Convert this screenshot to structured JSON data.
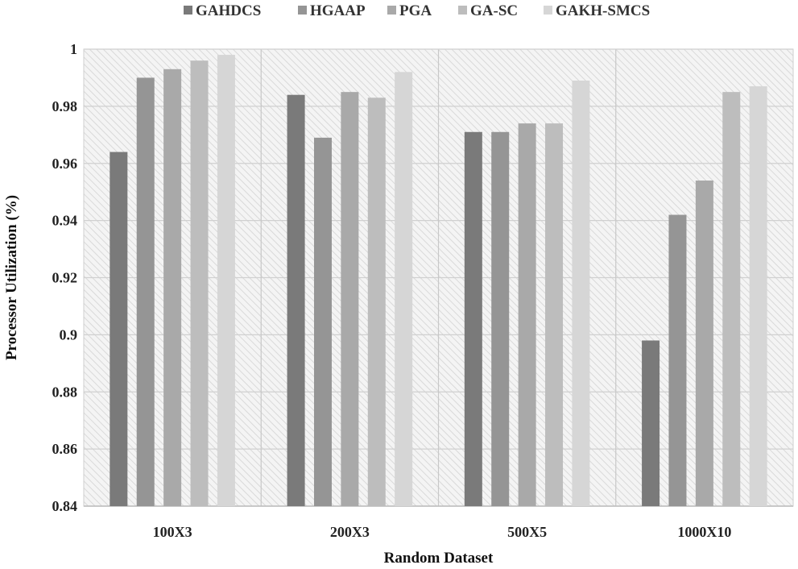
{
  "chart_data": {
    "type": "bar",
    "title": "",
    "xlabel": "Random Dataset",
    "ylabel": "Processor Utilization (%)",
    "ylim": [
      0.84,
      1.0
    ],
    "ytick_step": 0.02,
    "ytick_labels": [
      "0.84",
      "0.86",
      "0.88",
      "0.9",
      "0.92",
      "0.94",
      "0.96",
      "0.98",
      "1"
    ],
    "categories": [
      "100X3",
      "200X3",
      "500X5",
      "1000X10"
    ],
    "grid": true,
    "legend_position": "top",
    "series": [
      {
        "name": "GAHDCS",
        "color": "#7a7a7a",
        "values": [
          0.964,
          0.984,
          0.971,
          0.898
        ]
      },
      {
        "name": "HGAAP",
        "color": "#959595",
        "values": [
          0.99,
          0.969,
          0.971,
          0.942
        ]
      },
      {
        "name": "PGA",
        "color": "#a9a9a9",
        "values": [
          0.993,
          0.985,
          0.974,
          0.954
        ]
      },
      {
        "name": "GA-SC",
        "color": "#bdbdbd",
        "values": [
          0.996,
          0.983,
          0.974,
          0.985
        ]
      },
      {
        "name": "GAKH-SMCS",
        "color": "#d6d6d6",
        "values": [
          0.998,
          0.992,
          0.989,
          0.987
        ]
      }
    ]
  }
}
